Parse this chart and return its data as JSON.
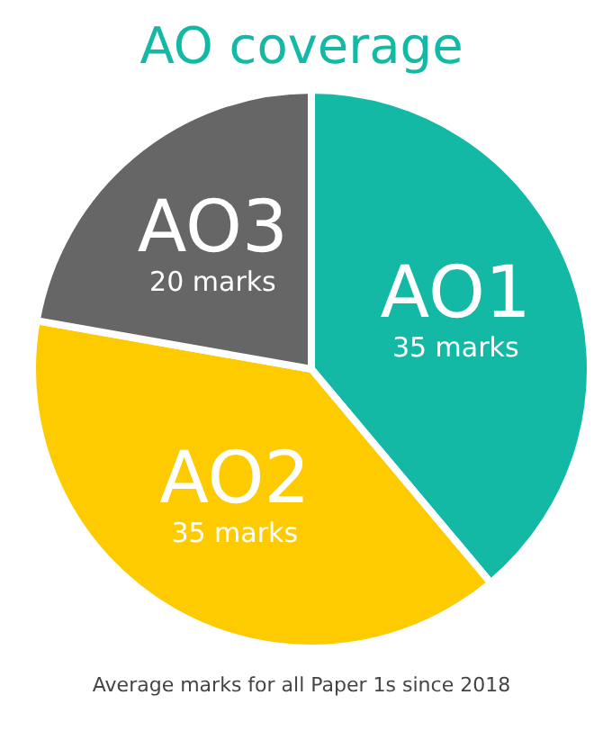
{
  "chart_data": {
    "type": "pie",
    "title": "AO coverage",
    "categories": [
      "AO1",
      "AO2",
      "AO3"
    ],
    "values": [
      35,
      35,
      20
    ],
    "value_labels": [
      "35 marks",
      "35 marks",
      "20 marks"
    ],
    "colors": [
      "#13b9a4",
      "#fdcb00",
      "#666666"
    ],
    "annotations": [
      "Average marks for all Paper 1s since 2018"
    ]
  }
}
